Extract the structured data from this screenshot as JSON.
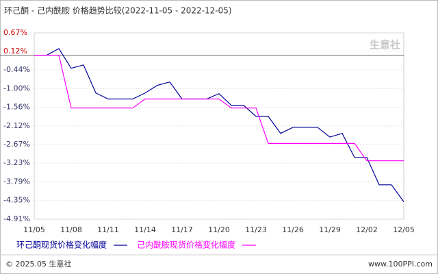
{
  "chart_data": {
    "type": "line",
    "title": "环己酮 - 己内酰胺 价格趋势比较(2022-11-05 - 2022-12-05)",
    "watermark": "生意社",
    "footer_left": "© 2025.05 生意社",
    "footer_right": "www.100PPI.com",
    "categories": [
      "11/05",
      null,
      null,
      "11/08",
      null,
      null,
      "11/11",
      null,
      null,
      "11/14",
      null,
      null,
      "11/17",
      null,
      null,
      "11/20",
      null,
      null,
      "11/23",
      null,
      null,
      "11/26",
      null,
      null,
      "11/29",
      null,
      null,
      "12/02",
      null,
      null,
      "12/05"
    ],
    "series": [
      {
        "name": "环己酮现货价格变化幅度",
        "color": "#000099",
        "values": [
          0,
          0,
          0.2,
          -0.39,
          -0.29,
          -1.13,
          -1.31,
          -1.31,
          -1.31,
          -1.13,
          -0.9,
          -0.8,
          -1.31,
          -1.31,
          -1.31,
          -1.15,
          -1.5,
          -1.5,
          -1.83,
          -1.83,
          -2.34,
          -2.16,
          -2.16,
          -2.16,
          -2.45,
          -2.34,
          -3.06,
          -3.06,
          -3.88,
          -3.88,
          -4.39
        ]
      },
      {
        "name": "己内酰胺现货价格变化幅度",
        "color": "#ff00ff",
        "values": [
          0,
          0,
          0,
          -1.58,
          -1.58,
          -1.58,
          -1.58,
          -1.58,
          -1.58,
          -1.31,
          -1.31,
          -1.31,
          -1.31,
          -1.31,
          -1.31,
          -1.31,
          -1.58,
          -1.58,
          -1.58,
          -2.64,
          -2.64,
          -2.64,
          -2.64,
          -2.64,
          -2.64,
          -2.64,
          -2.64,
          -3.16,
          -3.16,
          -3.16,
          -3.16
        ]
      }
    ],
    "ylim": [
      -4.91,
      0.67
    ],
    "yticks": [
      {
        "value": 0.67,
        "label": "0.67%"
      },
      {
        "value": 0.12,
        "label": "0.12%"
      },
      {
        "value": -0.44,
        "label": "-0.44%"
      },
      {
        "value": -1.0,
        "label": "-1.00%"
      },
      {
        "value": -1.56,
        "label": "-1.56%"
      },
      {
        "value": -2.12,
        "label": "-2.12%"
      },
      {
        "value": -2.67,
        "label": "-2.67%"
      },
      {
        "value": -3.23,
        "label": "-3.23%"
      },
      {
        "value": -3.79,
        "label": "-3.79%"
      },
      {
        "value": -4.35,
        "label": "-4.35%"
      },
      {
        "value": -4.91,
        "label": "-4.91%"
      }
    ],
    "grid": true
  }
}
